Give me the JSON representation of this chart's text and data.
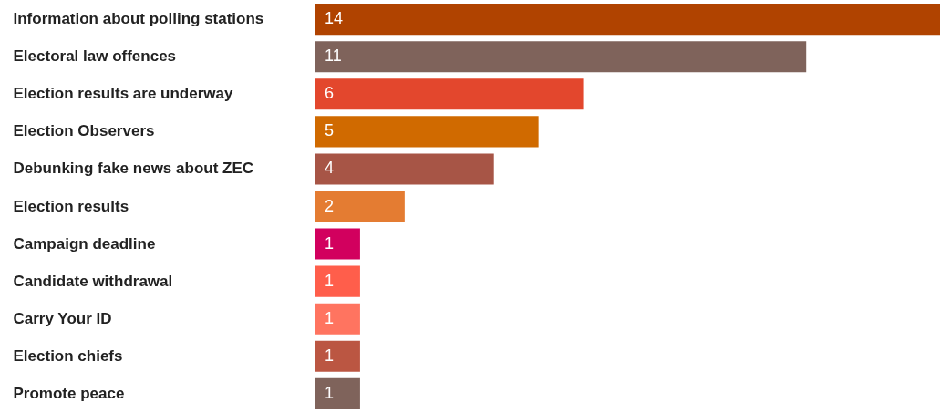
{
  "chart_data": {
    "type": "bar",
    "orientation": "horizontal",
    "categories": [
      "Information about polling stations",
      "Electoral law offences",
      "Election results are underway",
      "Election Observers",
      "Debunking fake news about ZEC",
      "Election results",
      "Campaign deadline",
      "Candidate withdrawal",
      "Carry Your ID",
      "Election chiefs",
      "Promote peace"
    ],
    "values": [
      14,
      11,
      6,
      5,
      4,
      2,
      1,
      1,
      1,
      1,
      1
    ],
    "colors": [
      "#b04300",
      "#7f635b",
      "#e3472d",
      "#d06a00",
      "#a75546",
      "#e47c32",
      "#d2005e",
      "#ff5e4b",
      "#ff7460",
      "#bb5642",
      "#7f635b"
    ],
    "data_labels": true
  }
}
